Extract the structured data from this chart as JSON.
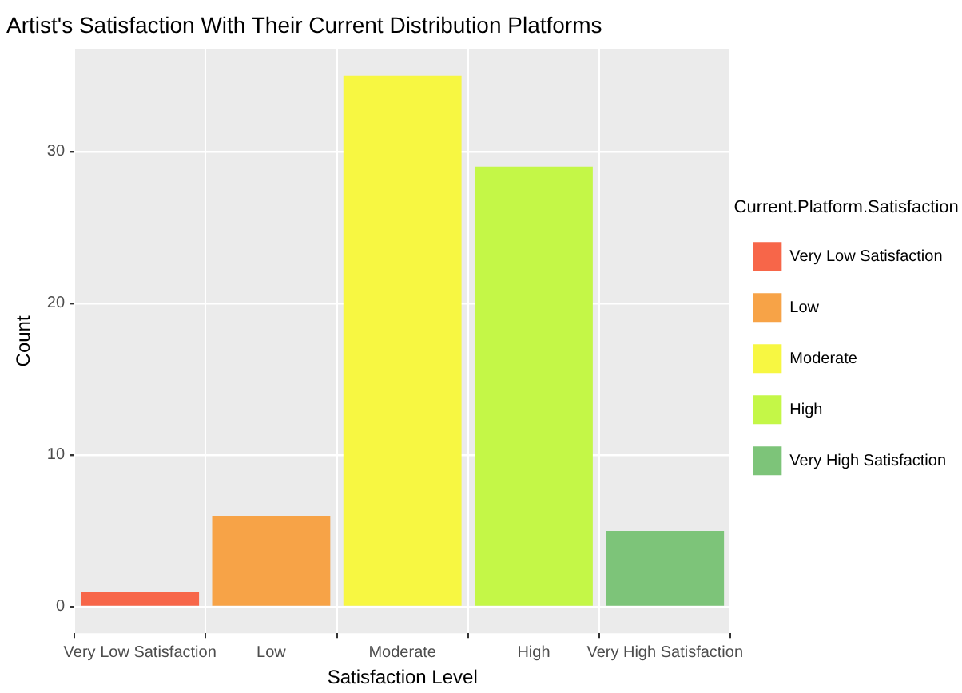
{
  "chart_data": {
    "type": "bar",
    "title": "Artist's Satisfaction With Their Current Distribution Platforms",
    "xlabel": "Satisfaction Level",
    "ylabel": "Count",
    "legend_title": "Current.Platform.Satisfaction",
    "categories": [
      "Very Low Satisfaction",
      "Low",
      "Moderate",
      "High",
      "Very High Satisfaction"
    ],
    "series": [
      {
        "name": "Very Low Satisfaction",
        "color": "#f76649",
        "values": [
          1,
          null,
          null,
          null,
          null
        ]
      },
      {
        "name": "Low",
        "color": "#f7a347",
        "values": [
          null,
          6,
          null,
          null,
          null
        ]
      },
      {
        "name": "Moderate",
        "color": "#f7f742",
        "values": [
          null,
          null,
          35,
          null,
          null
        ]
      },
      {
        "name": "High",
        "color": "#c4f747",
        "values": [
          null,
          null,
          null,
          29,
          null
        ]
      },
      {
        "name": "Very High Satisfaction",
        "color": "#7dc479",
        "values": [
          null,
          null,
          null,
          null,
          5
        ]
      }
    ],
    "ylim": [
      -1.75,
      36.75
    ],
    "yticks": [
      0,
      10,
      20,
      30
    ],
    "grid": true,
    "legend": "right"
  }
}
